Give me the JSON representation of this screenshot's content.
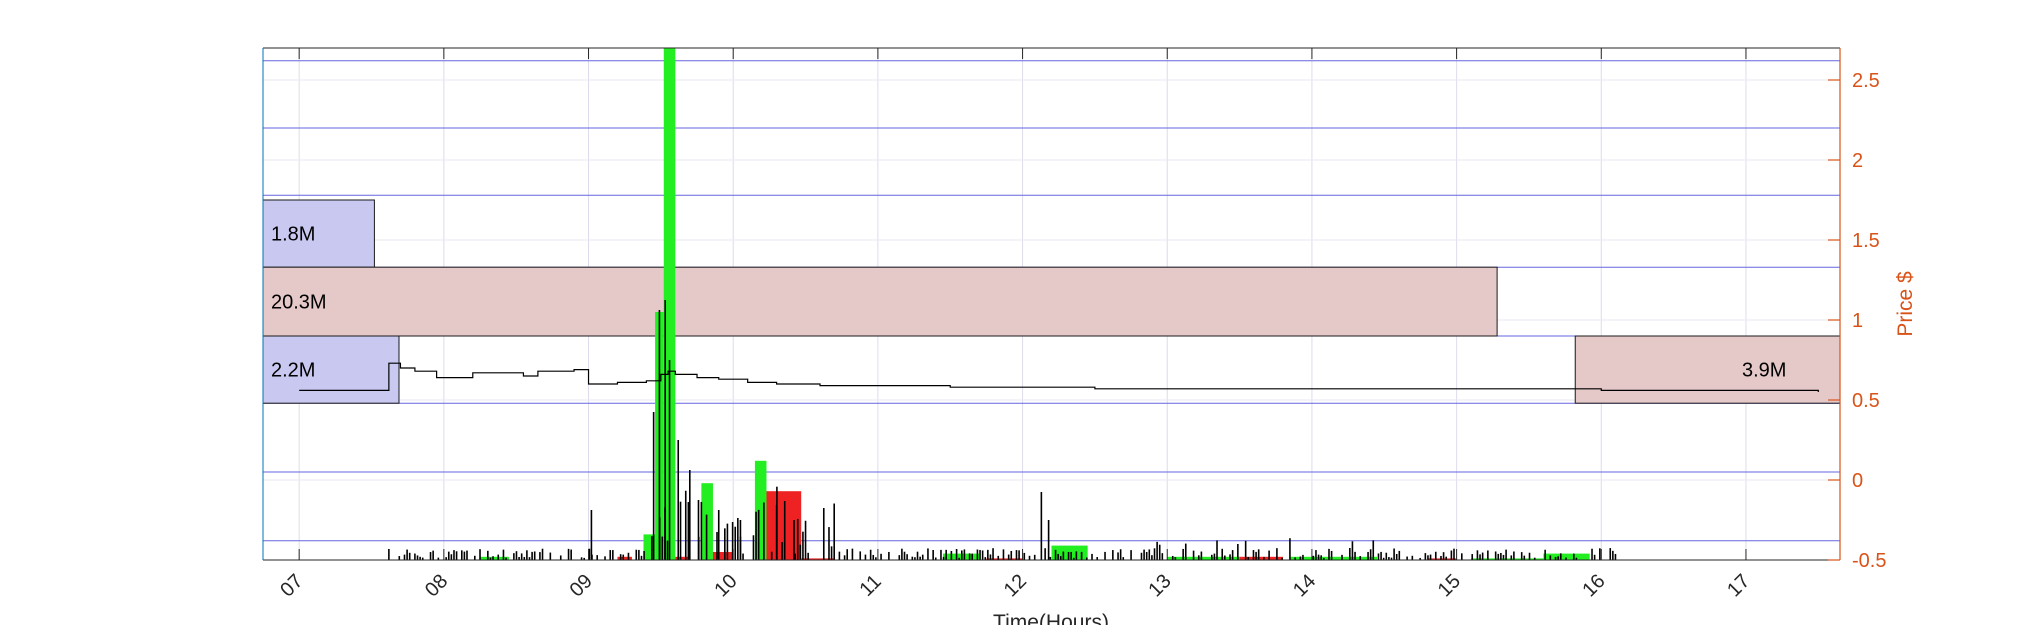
{
  "chart_data": {
    "type": "bar",
    "title": "",
    "xlabel": "Time(Hours)",
    "ylabel": "Price $",
    "x_unit": "hours",
    "xlim": [
      6.75,
      17.65
    ],
    "ylim": [
      -0.5,
      2.7
    ],
    "grid": true,
    "x_ticks": [
      "07",
      "08",
      "09",
      "10",
      "11",
      "12",
      "13",
      "14",
      "15",
      "16",
      "17"
    ],
    "y_ticks": [
      "-0.5",
      "0",
      "0.5",
      "1",
      "1.5",
      "2",
      "2.5"
    ],
    "colors": {
      "up_volume": "#22ee22",
      "down_volume": "#ee2222",
      "price_line": "#000000",
      "buy_box": "#c8c8f0",
      "sell_box": "#e5c8c8",
      "axis_right": "#d95319",
      "gridline": "#6666e0"
    },
    "volume_profile_boxes": [
      {
        "label": "1.8M",
        "kind": "buy",
        "x_start": 6.75,
        "x_end": 7.52,
        "price_low": 1.33,
        "price_high": 1.75
      },
      {
        "label": "20.3M",
        "kind": "sell",
        "x_start": 6.75,
        "x_end": 15.28,
        "price_low": 0.9,
        "price_high": 1.33
      },
      {
        "label": "2.2M",
        "kind": "buy",
        "x_start": 6.75,
        "x_end": 7.69,
        "price_low": 0.48,
        "price_high": 0.9
      },
      {
        "label": "3.9M",
        "kind": "sell",
        "x_start": 15.82,
        "x_end": 17.65,
        "price_low": 0.48,
        "price_high": 0.9
      }
    ],
    "volume_bars": [
      {
        "x_start": 8.25,
        "x_end": 8.45,
        "top": -0.48,
        "kind": "up"
      },
      {
        "x_start": 9.2,
        "x_end": 9.3,
        "top": -0.48,
        "kind": "down"
      },
      {
        "x_start": 9.38,
        "x_end": 9.46,
        "top": -0.34,
        "kind": "up"
      },
      {
        "x_start": 9.46,
        "x_end": 9.52,
        "top": 1.05,
        "kind": "up"
      },
      {
        "x_start": 9.52,
        "x_end": 9.6,
        "top": 2.7,
        "kind": "up"
      },
      {
        "x_start": 9.6,
        "x_end": 9.7,
        "top": -0.48,
        "kind": "down"
      },
      {
        "x_start": 9.78,
        "x_end": 9.86,
        "top": -0.02,
        "kind": "up"
      },
      {
        "x_start": 9.86,
        "x_end": 10.0,
        "top": -0.45,
        "kind": "down"
      },
      {
        "x_start": 10.15,
        "x_end": 10.23,
        "top": 0.12,
        "kind": "up"
      },
      {
        "x_start": 10.23,
        "x_end": 10.47,
        "top": -0.07,
        "kind": "down"
      },
      {
        "x_start": 10.47,
        "x_end": 10.7,
        "top": -0.49,
        "kind": "down"
      },
      {
        "x_start": 11.45,
        "x_end": 11.7,
        "top": -0.46,
        "kind": "up"
      },
      {
        "x_start": 11.75,
        "x_end": 12.0,
        "top": -0.49,
        "kind": "down"
      },
      {
        "x_start": 12.2,
        "x_end": 12.45,
        "top": -0.41,
        "kind": "up"
      },
      {
        "x_start": 13.0,
        "x_end": 13.5,
        "top": -0.48,
        "kind": "up"
      },
      {
        "x_start": 13.5,
        "x_end": 13.8,
        "top": -0.48,
        "kind": "down"
      },
      {
        "x_start": 13.85,
        "x_end": 14.45,
        "top": -0.48,
        "kind": "up"
      },
      {
        "x_start": 14.8,
        "x_end": 15.0,
        "top": -0.49,
        "kind": "down"
      },
      {
        "x_start": 15.1,
        "x_end": 15.6,
        "top": -0.49,
        "kind": "up"
      },
      {
        "x_start": 15.6,
        "x_end": 15.92,
        "top": -0.46,
        "kind": "up"
      }
    ],
    "price_series": {
      "x": [
        7.0,
        7.6,
        7.62,
        7.7,
        7.8,
        7.95,
        8.2,
        8.45,
        8.55,
        8.65,
        8.9,
        9.0,
        9.2,
        9.4,
        9.5,
        9.55,
        9.6,
        9.75,
        9.9,
        10.1,
        10.3,
        10.6,
        11.0,
        11.5,
        12.0,
        12.5,
        13.0,
        13.5,
        14.0,
        14.5,
        15.0,
        15.5,
        16.0,
        16.5,
        17.0,
        17.5
      ],
      "y": [
        0.56,
        0.56,
        0.73,
        0.7,
        0.68,
        0.64,
        0.67,
        0.67,
        0.65,
        0.68,
        0.69,
        0.6,
        0.61,
        0.62,
        0.66,
        0.68,
        0.66,
        0.64,
        0.63,
        0.61,
        0.6,
        0.59,
        0.59,
        0.58,
        0.58,
        0.57,
        0.57,
        0.57,
        0.57,
        0.57,
        0.57,
        0.57,
        0.56,
        0.56,
        0.56,
        0.55
      ]
    }
  }
}
